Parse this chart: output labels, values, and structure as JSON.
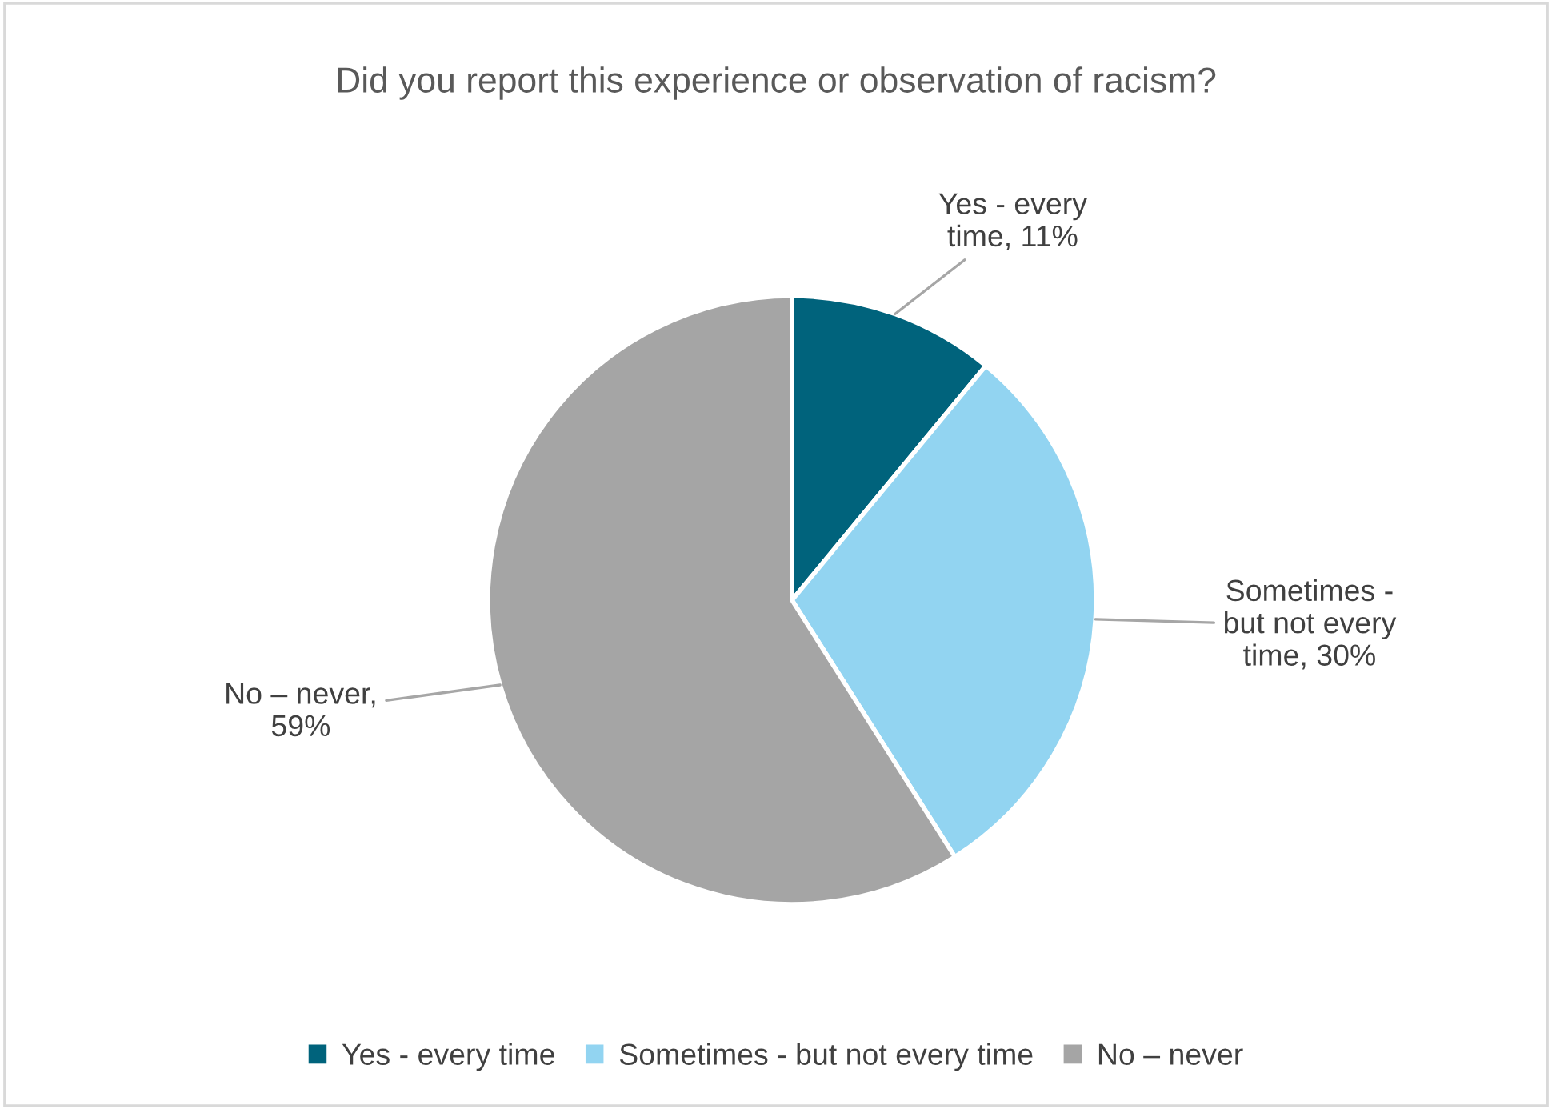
{
  "chart_data": {
    "type": "pie",
    "title": "Did you report this experience or observation of racism?",
    "categories": [
      "Yes - every time",
      "Sometimes - but not every time",
      "No – never"
    ],
    "values": [
      11,
      30,
      59
    ],
    "colors": [
      "#00637c",
      "#92d4f1",
      "#a5a5a5"
    ],
    "value_labels": [
      "Yes - every\ntime, 11%",
      "Sometimes -\nbut not every\ntime, 30%",
      "No – never,\n59%"
    ],
    "legend": "bottom"
  }
}
